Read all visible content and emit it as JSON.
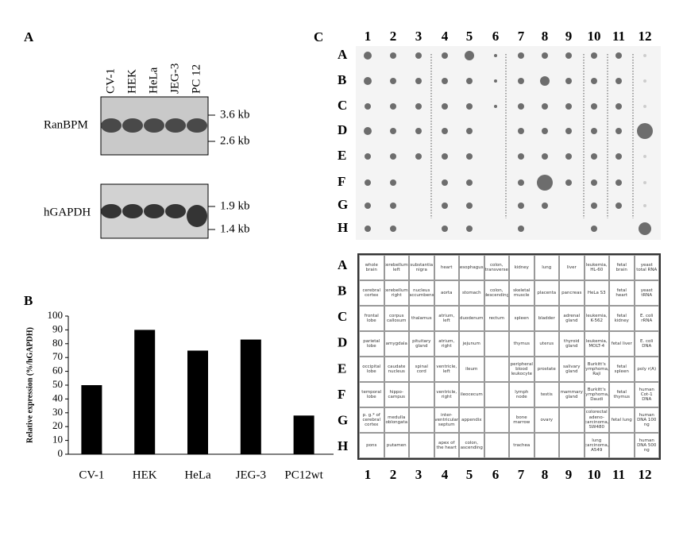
{
  "panel_labels": [
    "A",
    "B",
    "C"
  ],
  "panel_a": {
    "lanes": [
      "CV-1",
      "HEK",
      "HeLa",
      "JEG-3",
      "PC 12"
    ],
    "genes": [
      "RanBPM",
      "hGAPDH"
    ],
    "markers": [
      "3.6 kb",
      "2.6 kb",
      "1.9 kb",
      "1.4 kb"
    ]
  },
  "chart_data": {
    "type": "bar",
    "ylabel": "Relative expression (%/hGAPDH)",
    "categories": [
      "CV-1",
      "HEK",
      "HeLa",
      "JEG-3",
      "PC12wt"
    ],
    "values": [
      50,
      90,
      75,
      83,
      28
    ],
    "color": "#000000",
    "ylim": [
      0,
      100
    ],
    "yticks": [
      0,
      10,
      20,
      30,
      40,
      50,
      60,
      70,
      80,
      90,
      100
    ]
  },
  "panel_c": {
    "columns": [
      "1",
      "2",
      "3",
      "4",
      "5",
      "6",
      "7",
      "8",
      "9",
      "10",
      "11",
      "12"
    ],
    "rows": [
      "A",
      "B",
      "C",
      "D",
      "E",
      "F",
      "G",
      "H"
    ],
    "tissues": [
      [
        "whole brain",
        "cerebellum, left",
        "substantia nigra",
        "heart",
        "esophagus",
        "colon, transverse",
        "kidney",
        "lung",
        "liver",
        "leukemia, HL-60",
        "fetal brain",
        "yeast total RNA"
      ],
      [
        "cerebral cortex",
        "cerebellum, right",
        "nucleus accumbens",
        "aorta",
        "stomach",
        "colon, descending",
        "skeletal muscle",
        "placenta",
        "pancreas",
        "HeLa S3",
        "fetal heart",
        "yeast tRNA"
      ],
      [
        "frontal lobe",
        "corpus callosum",
        "thalamus",
        "atrium, left",
        "duodenum",
        "rectum",
        "spleen",
        "bladder",
        "adrenal gland",
        "leukemia, K-562",
        "fetal kidney",
        "E. coli rRNA"
      ],
      [
        "parietal lobe",
        "amygdala",
        "pituitary gland",
        "atrium, right",
        "jejunum",
        null,
        "thymus",
        "uterus",
        "thyroid gland",
        "leukemia, MOLT-4",
        "fetal liver",
        "E. coli DNA"
      ],
      [
        "occipital lobe",
        "caudate nucleus",
        "spinal cord",
        "ventricle, left",
        "ileum",
        null,
        "peripheral blood leukocyte",
        "prostate",
        "salivary gland",
        "Burkitt's lymphoma, Raji",
        "fetal spleen",
        "poly r(A)"
      ],
      [
        "temporal lobe",
        "hippo-campus",
        null,
        "ventricle, right",
        "ileocecum",
        null,
        "lymph node",
        "testis",
        "mammary gland",
        "Burkitt's lymphoma, Daudi",
        "fetal thymus",
        "human Cot-1 DNA"
      ],
      [
        "p. g.* of cerebral cortex",
        "medulla oblongata",
        null,
        "inter-ventricular septum",
        "appendix",
        null,
        "bone marrow",
        "ovary",
        null,
        "colorectal adeno-carcinoma, SW480",
        "fetal lung",
        "human DNA 100 ng"
      ],
      [
        "pons",
        "putamen",
        null,
        "apex of the heart",
        "colon, ascending",
        null,
        "trachea",
        null,
        null,
        "lung carcinoma, A549",
        null,
        "human DNA 500 ng"
      ]
    ]
  }
}
